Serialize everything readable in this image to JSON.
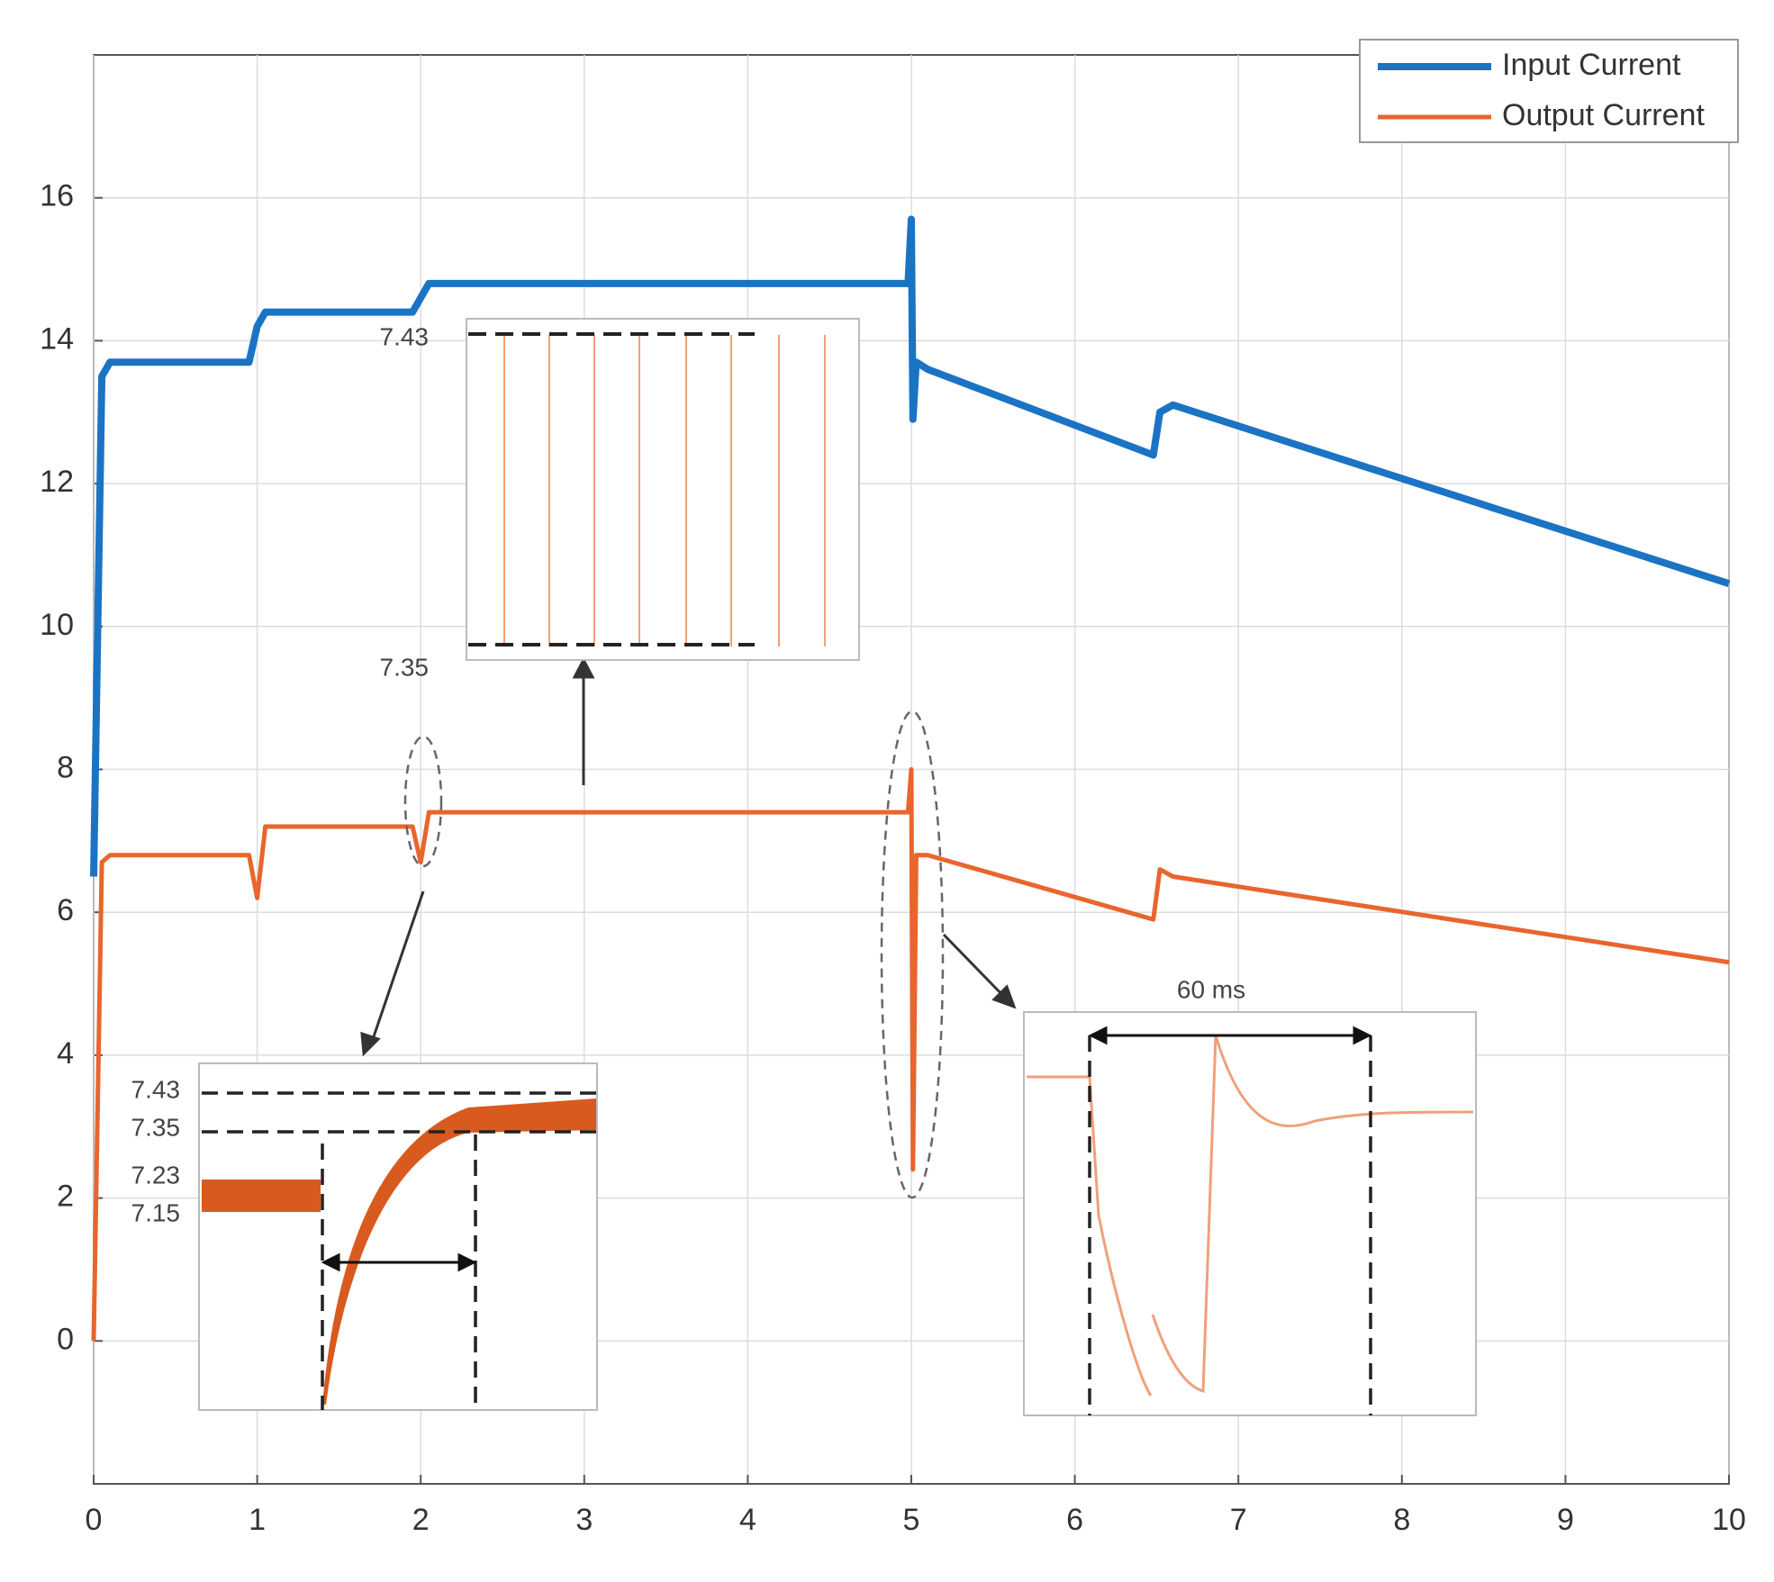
{
  "chart_data": {
    "type": "line",
    "x": [
      0,
      0.05,
      0.1,
      0.95,
      1.0,
      1.05,
      1.95,
      2.0,
      2.05,
      4.98,
      5.0,
      5.01,
      5.03,
      5.1,
      6.48,
      6.52,
      6.6,
      10
    ],
    "series": [
      {
        "name": "Input Current",
        "color": "#1b73c4",
        "values": [
          6.5,
          13.5,
          13.7,
          13.7,
          14.2,
          14.4,
          14.4,
          14.6,
          14.8,
          14.8,
          15.7,
          12.9,
          13.7,
          13.6,
          12.4,
          13.0,
          13.1,
          10.6
        ]
      },
      {
        "name": "Output Current",
        "color": "#e8652e",
        "values": [
          0,
          6.7,
          6.8,
          6.8,
          6.2,
          7.2,
          7.2,
          6.7,
          7.4,
          7.4,
          8.0,
          2.4,
          6.8,
          6.8,
          5.9,
          6.6,
          6.5,
          5.3
        ]
      }
    ],
    "xlim": [
      0,
      10
    ],
    "ylim": [
      -2,
      18
    ],
    "xticks": [
      0,
      1,
      2,
      3,
      4,
      5,
      6,
      7,
      8,
      9,
      10
    ],
    "yticks": [
      0,
      2,
      4,
      6,
      8,
      10,
      12,
      14,
      16
    ],
    "grid": true,
    "legend": "top-right",
    "annotations": [
      "7.43",
      "7.35",
      "7.43",
      "7.35",
      "7.23",
      "7.15",
      "60 ms"
    ]
  }
}
